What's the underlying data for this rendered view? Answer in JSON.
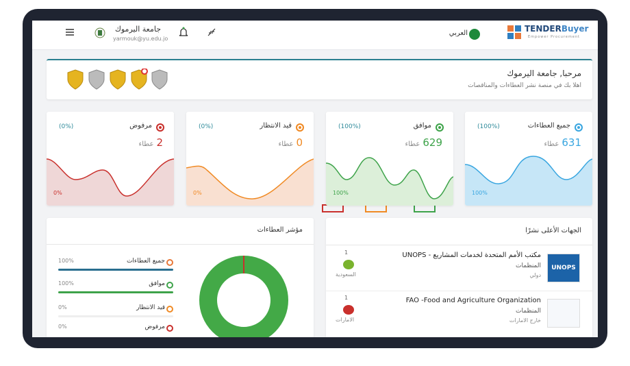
{
  "header": {
    "brand_a": "TENDER",
    "brand_b": "Buyer",
    "tagline": "Empower Procurement",
    "language": "العربي",
    "user_name": "جامعة اليرموك",
    "user_email": "yarmouk@yu.edu.jo"
  },
  "welcome": {
    "title": "مرحبا, جامعة اليرموك",
    "subtitle": "اهلا بك في منصة نشر العطاءات والمناقصات"
  },
  "stats": [
    {
      "label": "جميع العطاءات",
      "percent": "(100%)",
      "count": 631,
      "unit": "عطاء",
      "chart_label": "100%"
    },
    {
      "label": "موافق",
      "percent": "(100%)",
      "count": 629,
      "unit": "عطاء",
      "chart_label": "100%"
    },
    {
      "label": "قيد الانتظار",
      "percent": "(0%)",
      "count": 0,
      "unit": "عطاء",
      "chart_label": "0%"
    },
    {
      "label": "مرفوض",
      "percent": "(0%)",
      "count": 2,
      "unit": "عطاء",
      "chart_label": "0%"
    }
  ],
  "indicator": {
    "title": "مؤشر العطاءات",
    "items": [
      {
        "label": "جميع العطاءات",
        "percent": "100%"
      },
      {
        "label": "موافق",
        "percent": "100%"
      },
      {
        "label": "قيد الانتظار",
        "percent": "0%"
      },
      {
        "label": "مرفوض",
        "percent": "0%"
      }
    ]
  },
  "top_publishers": {
    "title": "الجهات الأعلى نشرًا",
    "rows": [
      {
        "name": "مكتب الأمم المتحدة لخدمات المشاريع - UNOPS",
        "category": "المنظمات",
        "location": "دولي",
        "views": 1,
        "country": "السعودية",
        "logo_text": "UNOPS"
      },
      {
        "name": "FAO -Food and Agriculture Organization",
        "category": "المنظمات",
        "location": "خارج الامارات",
        "views": 1,
        "country": "الامارات"
      }
    ]
  }
}
